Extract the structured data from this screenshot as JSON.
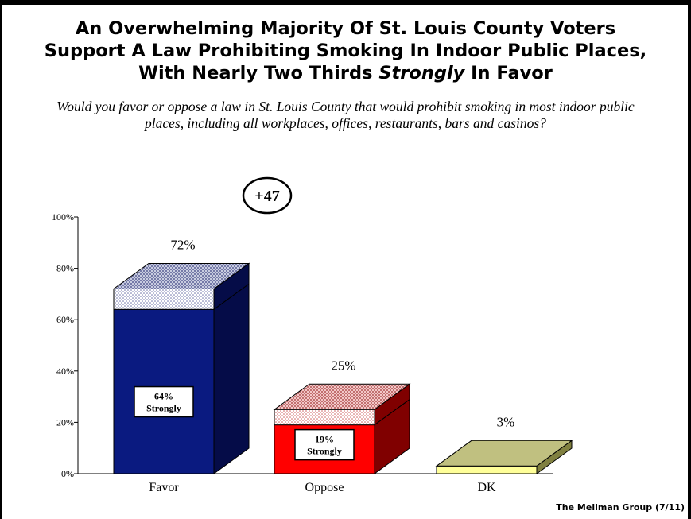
{
  "title": {
    "line1": "An Overwhelming Majority Of St. Louis County Voters",
    "line2": "Support A Law Prohibiting Smoking In Indoor Public Places,",
    "line3_pre": "With Nearly Two Thirds ",
    "line3_em": "Strongly",
    "line3_post": " In Favor"
  },
  "question": "Would you favor or oppose a law in St. Louis County that would prohibit smoking in most indoor public places, including all workplaces, offices, restaurants, bars and casinos?",
  "margin_label": "+47",
  "footer": "The Mellman Group (7/11)",
  "colors": {
    "favor_front": "#0a1a80",
    "favor_side": "#050c48",
    "favor_top": "#9aa0c8",
    "oppose_front": "#ff0000",
    "oppose_side": "#800000",
    "oppose_top": "#e8a0a0",
    "dk_front": "#ffff99",
    "dk_side": "#808040",
    "dk_top": "#c0c080"
  },
  "chart_data": {
    "type": "bar",
    "categories": [
      "Favor",
      "Oppose",
      "DK"
    ],
    "values": [
      72,
      25,
      3
    ],
    "value_labels": [
      "72%",
      "25%",
      "3%"
    ],
    "strongly_values": [
      64,
      19,
      null
    ],
    "strongly_labels": [
      "64%",
      "19%",
      null
    ],
    "strongly_text": "Strongly",
    "y_ticks": [
      "0%",
      "20%",
      "40%",
      "60%",
      "80%",
      "100%"
    ],
    "ylim": [
      0,
      100
    ]
  }
}
